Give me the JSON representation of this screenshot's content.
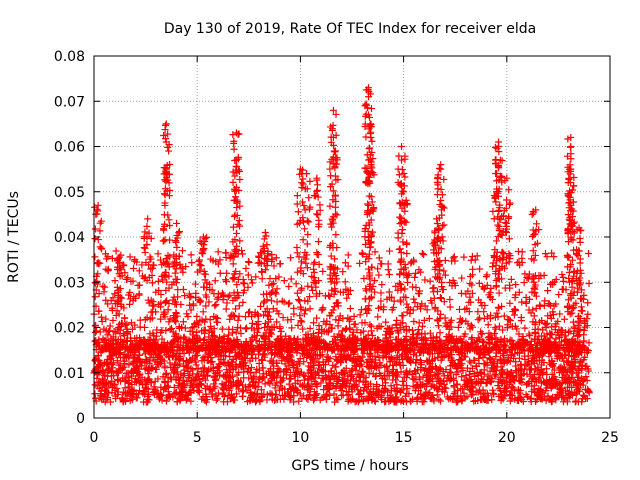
{
  "chart_data": {
    "type": "scatter",
    "title": "Day 130 of 2019, Rate Of TEC Index for receiver elda",
    "xlabel": "GPS time / hours",
    "ylabel": "ROTI / TECUs",
    "xlim": [
      0,
      25
    ],
    "ylim": [
      0,
      0.08
    ],
    "xticks": [
      0,
      5,
      10,
      15,
      20,
      25
    ],
    "xtick_labels": [
      "0",
      "5",
      "10",
      "15",
      "20",
      "25"
    ],
    "yticks": [
      0,
      0.01,
      0.02,
      0.03,
      0.04,
      0.05,
      0.06,
      0.07,
      0.08
    ],
    "ytick_labels": [
      "0",
      "0.01",
      "0.02",
      "0.03",
      "0.04",
      "0.05",
      "0.06",
      "0.07",
      "0.08"
    ],
    "grid": true,
    "marker": "+",
    "color": "#ff0000",
    "series": [
      {
        "name": "ROTI",
        "x_range": [
          0,
          24
        ],
        "baseline_band": [
          0.005,
          0.015
        ],
        "peaks": [
          {
            "x": 0.2,
            "y": 0.047
          },
          {
            "x": 1.3,
            "y": 0.036
          },
          {
            "x": 2.6,
            "y": 0.044
          },
          {
            "x": 3.5,
            "y": 0.065
          },
          {
            "x": 3.5,
            "y": 0.061
          },
          {
            "x": 3.5,
            "y": 0.055
          },
          {
            "x": 4.0,
            "y": 0.043
          },
          {
            "x": 5.3,
            "y": 0.04
          },
          {
            "x": 6.9,
            "y": 0.063
          },
          {
            "x": 6.9,
            "y": 0.057
          },
          {
            "x": 6.9,
            "y": 0.051
          },
          {
            "x": 8.3,
            "y": 0.041
          },
          {
            "x": 10.0,
            "y": 0.055
          },
          {
            "x": 10.3,
            "y": 0.054
          },
          {
            "x": 10.8,
            "y": 0.053
          },
          {
            "x": 11.6,
            "y": 0.068
          },
          {
            "x": 11.6,
            "y": 0.062
          },
          {
            "x": 11.7,
            "y": 0.059
          },
          {
            "x": 13.3,
            "y": 0.073
          },
          {
            "x": 13.3,
            "y": 0.071
          },
          {
            "x": 13.3,
            "y": 0.067
          },
          {
            "x": 13.4,
            "y": 0.065
          },
          {
            "x": 13.3,
            "y": 0.057
          },
          {
            "x": 14.9,
            "y": 0.06
          },
          {
            "x": 14.9,
            "y": 0.057
          },
          {
            "x": 15.0,
            "y": 0.05
          },
          {
            "x": 16.8,
            "y": 0.056
          },
          {
            "x": 16.8,
            "y": 0.055
          },
          {
            "x": 16.6,
            "y": 0.044
          },
          {
            "x": 19.6,
            "y": 0.061
          },
          {
            "x": 19.6,
            "y": 0.06
          },
          {
            "x": 20.0,
            "y": 0.053
          },
          {
            "x": 19.5,
            "y": 0.05
          },
          {
            "x": 21.4,
            "y": 0.046
          },
          {
            "x": 23.1,
            "y": 0.062
          },
          {
            "x": 23.1,
            "y": 0.06
          },
          {
            "x": 23.1,
            "y": 0.055
          },
          {
            "x": 23.1,
            "y": 0.047
          },
          {
            "x": 23.5,
            "y": 0.042
          }
        ]
      }
    ]
  }
}
